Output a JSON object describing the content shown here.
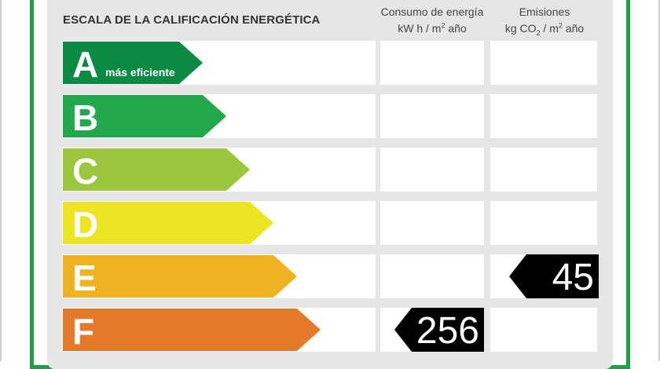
{
  "header": {
    "title": "ESCALA DE LA CALIFICACIÓN ENERGÉTICA",
    "energy_col": {
      "line1": "Consumo de energía",
      "line2_pre": "kW h  / m",
      "line2_sup": "2",
      "line2_post": " año"
    },
    "emissions_col": {
      "line1": "Emisiones",
      "line2_pre": "kg CO",
      "line2_sub": "2",
      "line2_mid": "  / m",
      "line2_sup": "2",
      "line2_post": " año"
    }
  },
  "scale": [
    {
      "letter": "A",
      "note": "más eficiente",
      "color": "#0a8a43"
    },
    {
      "letter": "B",
      "note": "",
      "color": "#22a94b"
    },
    {
      "letter": "C",
      "note": "",
      "color": "#9ac73b"
    },
    {
      "letter": "D",
      "note": "",
      "color": "#ece524"
    },
    {
      "letter": "E",
      "note": "",
      "color": "#efb321"
    },
    {
      "letter": "F",
      "note": "",
      "color": "#e2792b"
    }
  ],
  "ratings": {
    "energy": {
      "row": "F",
      "value": "256"
    },
    "emissions": {
      "row": "E",
      "value": "45"
    }
  }
}
